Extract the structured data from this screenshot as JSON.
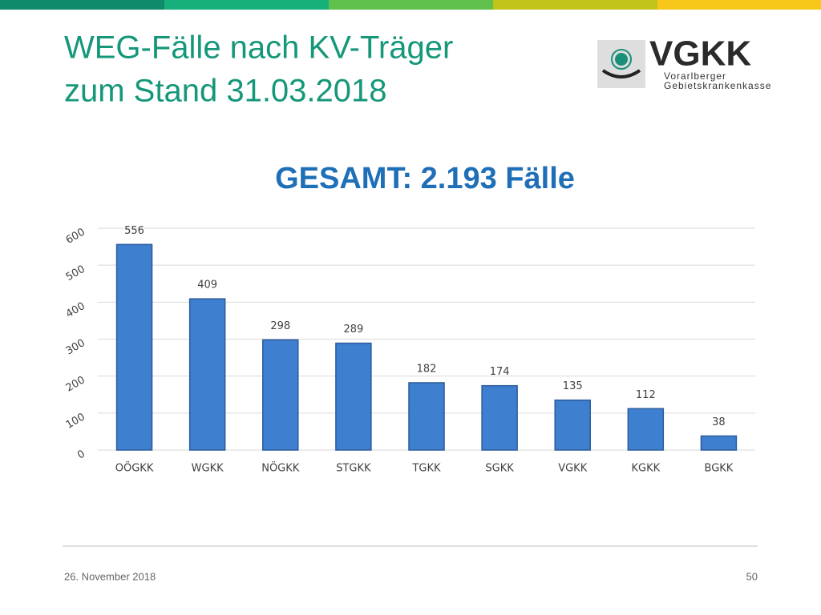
{
  "slide": {
    "title_lines": [
      "WEG-Fälle nach KV-Träger",
      "zum Stand 31.03.2018"
    ],
    "logo": {
      "name": "VGKK",
      "line1": "Vorarlberger",
      "line2": "Gebietskrankenkasse"
    },
    "footer": {
      "date": "26. November 2018",
      "page": "50"
    }
  },
  "chart_data": {
    "type": "bar",
    "title": "GESAMT: 2.193 Fälle",
    "categories": [
      "OÖGKK",
      "WGKK",
      "NÖGKK",
      "STGKK",
      "TGKK",
      "SGKK",
      "VGKK",
      "KGKK",
      "BGKK"
    ],
    "values": [
      556,
      409,
      298,
      289,
      182,
      174,
      135,
      112,
      38
    ],
    "color": "#3f7fcf",
    "ylim": [
      0,
      600
    ],
    "yticks": [
      0,
      100,
      200,
      300,
      400,
      500,
      600
    ],
    "grid": true
  }
}
